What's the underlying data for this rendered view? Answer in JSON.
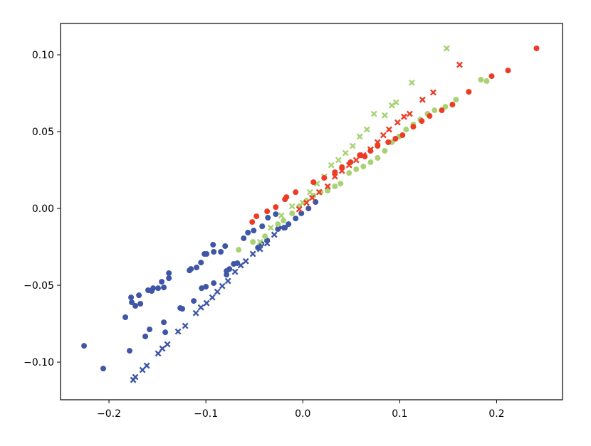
{
  "chart_data": {
    "type": "scatter",
    "xlim": [
      -0.25,
      0.268
    ],
    "ylim": [
      -0.1245,
      0.1204
    ],
    "xticks": [
      {
        "value": -0.2,
        "label": "−0.2"
      },
      {
        "value": -0.1,
        "label": "−0.1"
      },
      {
        "value": 0.0,
        "label": "0.0"
      },
      0.1,
      0.2
    ],
    "yticks": [
      {
        "value": -0.1,
        "label": "−0.10"
      },
      {
        "value": -0.05,
        "label": "−0.05"
      },
      {
        "value": 0,
        "label": "0.00"
      },
      0.05,
      {
        "value": 0.1,
        "label": "0.10"
      }
    ],
    "grid": false,
    "series": [
      {
        "color": "#3f56a6",
        "marker": "o",
        "x": [
          -0.2257,
          -0.2059,
          -0.1831,
          -0.1787,
          -0.1772,
          -0.1765,
          -0.1728,
          -0.1676,
          -0.1691,
          -0.1625,
          -0.1596,
          -0.1559,
          -0.1581,
          -0.1544,
          -0.1493,
          -0.1456,
          -0.1434,
          -0.1382,
          -0.1382,
          -0.1419,
          -0.1434,
          -0.1265,
          -0.1243,
          -0.1169,
          -0.1154,
          -0.1125,
          -0.1096,
          -0.1051,
          -0.1015,
          -0.0993,
          -0.0926,
          -0.0919,
          -0.0846,
          -0.0801,
          -0.0787,
          -0.1044,
          -0.1,
          -0.0919,
          -0.0787,
          -0.0757,
          -0.0713,
          -0.0676,
          -0.061,
          -0.0566,
          -0.0507,
          -0.0419,
          -0.036,
          -0.0279,
          -0.0463,
          -0.0426,
          -0.0368,
          -0.0257,
          -0.0184,
          -0.0147,
          -0.0074,
          -0.0015,
          0.0059,
          0.0132
        ],
        "values": [
          -0.0894,
          -0.1042,
          -0.0708,
          -0.0926,
          -0.0579,
          -0.0611,
          -0.0634,
          -0.062,
          -0.0565,
          -0.0833,
          -0.0532,
          -0.0537,
          -0.0787,
          -0.0519,
          -0.0519,
          -0.0477,
          -0.0514,
          -0.0421,
          -0.0454,
          -0.0806,
          -0.0741,
          -0.0648,
          -0.0653,
          -0.0403,
          -0.0394,
          -0.0602,
          -0.0384,
          -0.0352,
          -0.0296,
          -0.0296,
          -0.0236,
          -0.0282,
          -0.0282,
          -0.0245,
          -0.0407,
          -0.0519,
          -0.0509,
          -0.0486,
          -0.0431,
          -0.0394,
          -0.0361,
          -0.0356,
          -0.0194,
          -0.0157,
          -0.0144,
          -0.0116,
          -0.006,
          -0.0037,
          -0.0255,
          -0.0231,
          -0.0208,
          -0.0134,
          -0.0125,
          -0.0102,
          -0.0065,
          -0.0032,
          0.0,
          0.0042
        ]
      },
      {
        "color": "#3f56a6",
        "marker": "x",
        "x": [
          -0.175,
          -0.1728,
          -0.1654,
          -0.161,
          -0.1493,
          -0.1449,
          -0.1397,
          -0.1287,
          -0.1213,
          -0.1103,
          -0.1051,
          -0.0993,
          -0.0934,
          -0.0882,
          -0.0831,
          -0.0772,
          -0.0699,
          -0.064,
          -0.0588,
          -0.0515,
          -0.0441,
          -0.0368,
          -0.0294,
          -0.0221
        ],
        "values": [
          -0.1116,
          -0.1097,
          -0.1051,
          -0.1023,
          -0.0944,
          -0.0912,
          -0.0884,
          -0.0801,
          -0.0764,
          -0.0681,
          -0.0644,
          -0.0616,
          -0.0579,
          -0.0542,
          -0.0505,
          -0.0472,
          -0.0412,
          -0.037,
          -0.0343,
          -0.0296,
          -0.0264,
          -0.0227,
          -0.0171,
          -0.0125
        ]
      },
      {
        "color": "#a8d273",
        "marker": "o",
        "x": [
          -0.0662,
          -0.0515,
          -0.039,
          -0.0257,
          -0.0199,
          -0.011,
          -0.0037,
          0.0037,
          0.011,
          0.0184,
          0.0257,
          0.0331,
          0.039,
          0.0478,
          0.0551,
          0.0625,
          0.0699,
          0.0772,
          0.0846,
          0.0919,
          0.0993,
          0.1066,
          0.114,
          0.1213,
          0.1287,
          0.136,
          0.1471,
          0.1581,
          0.1838,
          0.1897
        ],
        "values": [
          -0.0269,
          -0.0218,
          -0.0181,
          -0.0102,
          -0.0079,
          -0.0032,
          0.0014,
          0.0051,
          0.0083,
          0.0106,
          0.0116,
          0.0144,
          0.0162,
          0.0231,
          0.0255,
          0.0273,
          0.0301,
          0.0329,
          0.0375,
          0.0431,
          0.0468,
          0.0514,
          0.0546,
          0.0579,
          0.0616,
          0.0639,
          0.0662,
          0.0708,
          0.0838,
          0.0829
        ]
      },
      {
        "color": "#a8d273",
        "marker": "x",
        "x": [
          -0.0441,
          -0.0331,
          -0.0221,
          -0.011,
          0.0,
          0.0074,
          0.0147,
          0.0221,
          0.0294,
          0.0368,
          0.0441,
          0.0515,
          0.0588,
          0.0662,
          0.0735,
          0.0846,
          0.0919,
          0.0963,
          0.1125,
          0.1485
        ],
        "values": [
          -0.0218,
          -0.0125,
          -0.0046,
          0.0014,
          0.0037,
          0.0106,
          0.0162,
          0.0208,
          0.0282,
          0.0315,
          0.0361,
          0.0407,
          0.0468,
          0.0514,
          0.0616,
          0.0606,
          0.0671,
          0.069,
          0.0819,
          0.1042
        ]
      },
      {
        "color": "#ee3b24",
        "marker": "o",
        "x": [
          -0.0522,
          -0.0478,
          -0.0368,
          -0.0279,
          -0.0184,
          -0.0169,
          -0.0074,
          0.011,
          0.0221,
          0.0331,
          0.0404,
          0.0493,
          0.0588,
          0.064,
          0.0699,
          0.0772,
          0.0882,
          0.0956,
          0.1029,
          0.114,
          0.1228,
          0.1309,
          0.1434,
          0.1544,
          0.1713,
          0.1949,
          0.2118,
          0.2412
        ],
        "values": [
          -0.0088,
          -0.0051,
          -0.0019,
          0.0009,
          0.006,
          0.0074,
          0.0106,
          0.0171,
          0.0199,
          0.0236,
          0.0269,
          0.0301,
          0.0347,
          0.0338,
          0.0375,
          0.0407,
          0.0431,
          0.0454,
          0.0477,
          0.0532,
          0.0569,
          0.0602,
          0.0639,
          0.0676,
          0.0759,
          0.0861,
          0.0898,
          0.1042
        ]
      },
      {
        "color": "#ee3b24",
        "marker": "x",
        "x": [
          -0.0037,
          0.0037,
          0.0096,
          0.0169,
          0.0257,
          0.0331,
          0.0404,
          0.0478,
          0.0551,
          0.0625,
          0.0699,
          0.0772,
          0.0831,
          0.089,
          0.0978,
          0.1044,
          0.1103,
          0.1235,
          0.1346,
          0.1618
        ],
        "values": [
          -0.0005,
          0.0037,
          0.0069,
          0.0106,
          0.0144,
          0.0208,
          0.0245,
          0.0282,
          0.0315,
          0.0347,
          0.0384,
          0.0431,
          0.0477,
          0.0514,
          0.056,
          0.0597,
          0.0616,
          0.0708,
          0.0755,
          0.0935
        ]
      }
    ]
  }
}
